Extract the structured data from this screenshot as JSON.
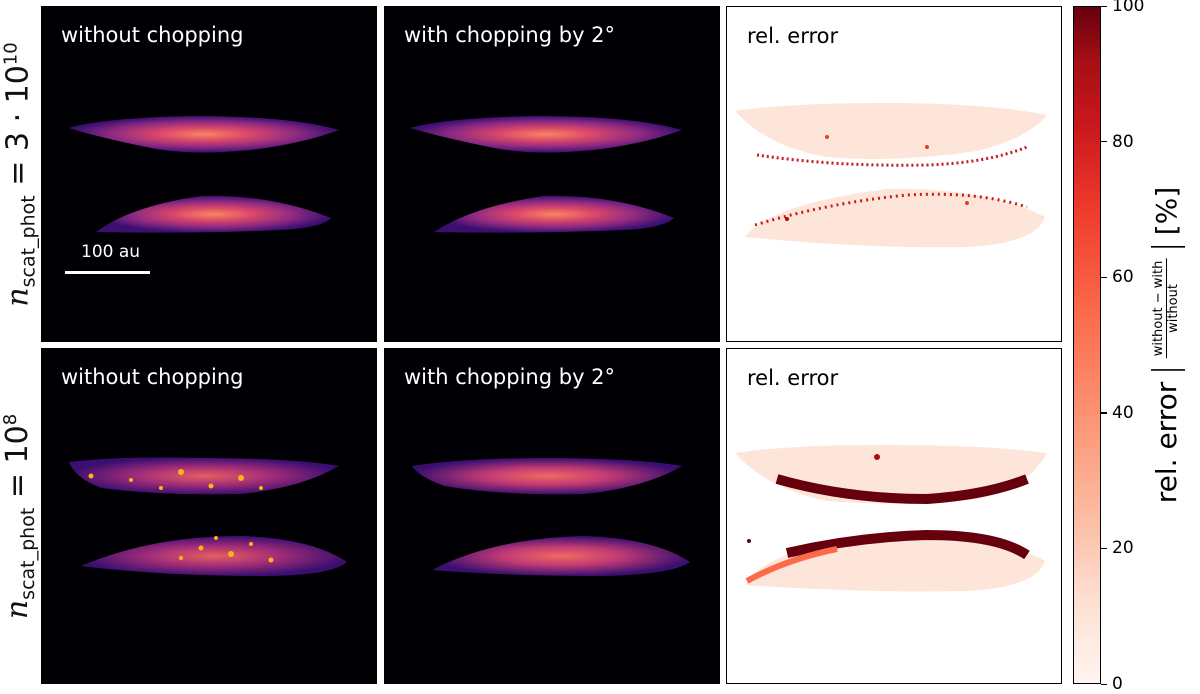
{
  "rows": [
    {
      "label_var": "n",
      "label_sub": "scat_phot",
      "label_rhs": " = 3 · 10",
      "label_sup": "10"
    },
    {
      "label_var": "n",
      "label_sub": "scat_phot",
      "label_rhs": " = 10",
      "label_sup": "8"
    }
  ],
  "panels": {
    "without": "without chopping",
    "with": "with chopping by 2°",
    "error": "rel. error"
  },
  "scalebar": {
    "label": "100 au"
  },
  "colorbar": {
    "label_prefix": "rel. error",
    "frac_num": "without − with",
    "frac_den": "without",
    "unit": "[%]",
    "ticks": [
      "0",
      "20",
      "40",
      "60",
      "80",
      "100"
    ],
    "range": [
      0,
      100
    ]
  }
}
